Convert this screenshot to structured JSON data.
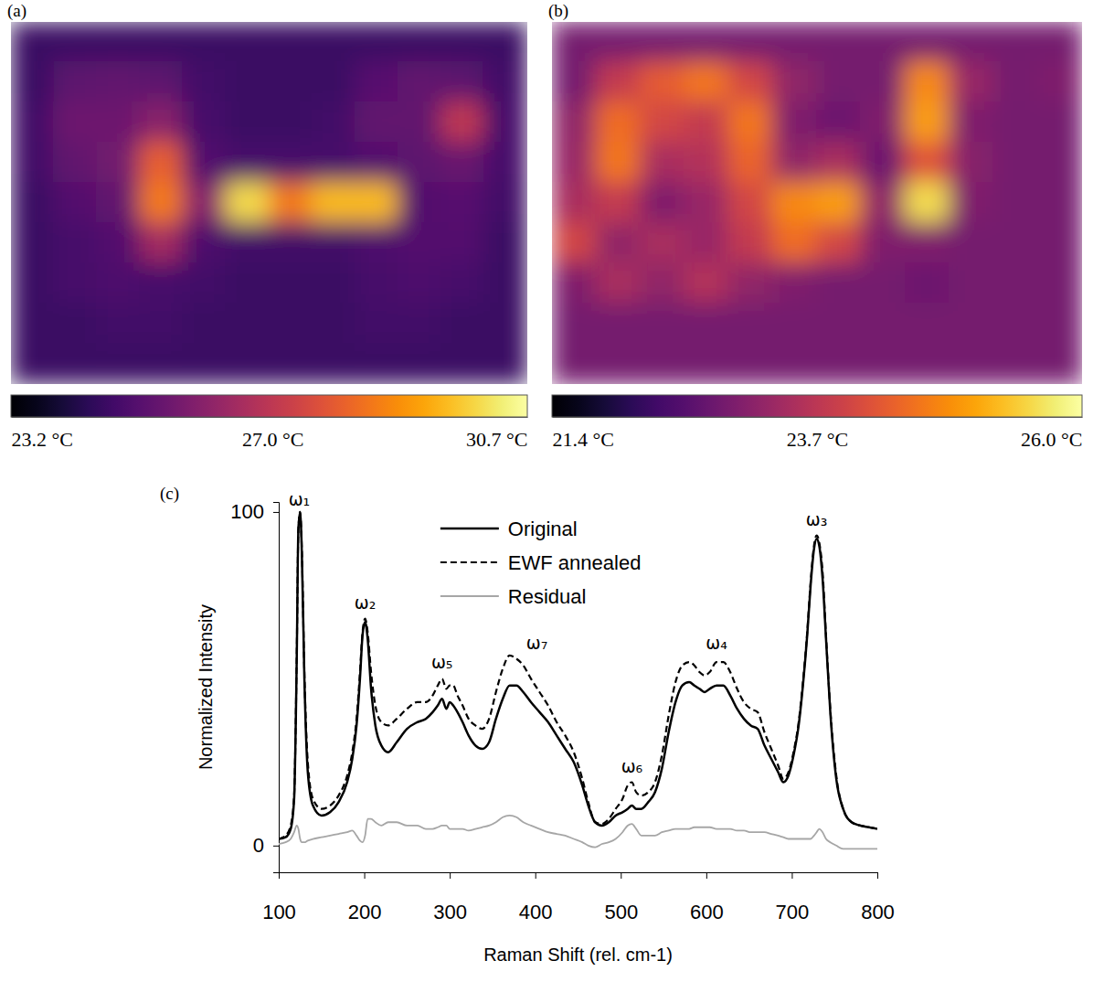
{
  "chart_data": [
    {
      "type": "heatmap",
      "title": "(a)",
      "color": "inferno",
      "tick_labels": false,
      "colorbar_range": [
        23.2,
        30.7
      ],
      "colorbar_ticks": [
        {
          "value": 23.2,
          "label": "23.2 °C"
        },
        {
          "value": 27.0,
          "label": "27.0 °C"
        },
        {
          "value": 30.7,
          "label": "30.7 °C"
        }
      ],
      "cells": [
        [
          24.6,
          24.6,
          24.6,
          24.6,
          24.6,
          24.6,
          24.6,
          24.6,
          24.6,
          24.6,
          24.6,
          24.6
        ],
        [
          24.6,
          25.2,
          25.3,
          25.2,
          24.7,
          24.6,
          24.6,
          24.6,
          25.1,
          25.3,
          25.2,
          24.7
        ],
        [
          24.7,
          25.5,
          25.5,
          26.0,
          24.8,
          24.6,
          24.6,
          24.7,
          25.3,
          25.3,
          27.0,
          24.8
        ],
        [
          24.7,
          25.3,
          25.6,
          28.0,
          25.0,
          24.8,
          24.8,
          24.8,
          25.0,
          25.2,
          25.4,
          24.8
        ],
        [
          24.6,
          25.0,
          25.3,
          28.5,
          26.0,
          30.0,
          28.5,
          29.5,
          29.5,
          25.0,
          25.1,
          24.7
        ],
        [
          24.6,
          24.8,
          25.0,
          26.5,
          24.9,
          24.7,
          24.7,
          24.7,
          24.9,
          25.0,
          25.0,
          24.6
        ],
        [
          24.6,
          24.8,
          24.9,
          24.8,
          24.7,
          24.6,
          24.6,
          24.6,
          24.8,
          24.9,
          24.8,
          24.6
        ],
        [
          24.6,
          24.6,
          24.7,
          24.7,
          24.6,
          24.6,
          24.6,
          24.6,
          24.7,
          24.7,
          24.6,
          24.6
        ],
        [
          24.6,
          24.6,
          24.6,
          24.6,
          24.6,
          24.6,
          24.6,
          24.6,
          24.6,
          24.6,
          24.6,
          24.6
        ]
      ]
    },
    {
      "type": "heatmap",
      "title": "(b)",
      "color": "inferno",
      "tick_labels": false,
      "colorbar_range": [
        21.4,
        26.0
      ],
      "colorbar_ticks": [
        {
          "value": 21.4,
          "label": "21.4 °C"
        },
        {
          "value": 23.7,
          "label": "23.7 °C"
        },
        {
          "value": 26.0,
          "label": "26.0 °C"
        }
      ],
      "cells": [
        [
          22.9,
          22.9,
          22.9,
          22.9,
          22.9,
          22.9,
          22.9,
          22.9,
          22.9,
          22.9,
          22.9,
          22.9
        ],
        [
          22.9,
          23.8,
          24.3,
          24.6,
          24.0,
          23.2,
          22.9,
          22.9,
          24.8,
          23.3,
          22.9,
          23.0
        ],
        [
          23.2,
          24.5,
          24.0,
          23.8,
          24.6,
          23.0,
          22.8,
          23.0,
          25.0,
          23.0,
          22.9,
          22.9
        ],
        [
          23.3,
          24.6,
          23.5,
          23.6,
          24.4,
          23.2,
          23.5,
          22.8,
          24.2,
          23.1,
          22.9,
          22.9
        ],
        [
          23.5,
          23.8,
          23.0,
          23.3,
          24.0,
          24.8,
          25.0,
          23.2,
          25.6,
          23.0,
          22.9,
          22.9
        ],
        [
          24.0,
          23.2,
          23.5,
          23.3,
          23.8,
          24.5,
          24.0,
          23.0,
          23.0,
          22.9,
          22.9,
          22.9
        ],
        [
          23.0,
          23.5,
          23.2,
          23.6,
          23.2,
          23.0,
          22.9,
          22.9,
          22.8,
          22.9,
          22.9,
          22.9
        ],
        [
          22.9,
          22.9,
          22.9,
          22.9,
          22.9,
          22.9,
          22.9,
          22.9,
          22.9,
          22.9,
          22.9,
          22.9
        ],
        [
          22.9,
          22.9,
          22.9,
          22.9,
          22.9,
          22.9,
          22.9,
          22.9,
          22.9,
          22.9,
          22.9,
          22.9
        ]
      ]
    },
    {
      "type": "line",
      "title": "(c)",
      "xlabel": "Raman Shift (rel. cm-1)",
      "ylabel": "Normalized Intensity",
      "xlim": [
        100,
        800
      ],
      "ylim": [
        -8,
        103
      ],
      "xticks": [
        100,
        200,
        300,
        400,
        500,
        600,
        700,
        800
      ],
      "yticks": [
        0,
        100
      ],
      "grid": false,
      "legend": "top",
      "x": [
        100,
        108,
        114,
        118,
        121,
        123,
        125,
        127,
        130,
        134,
        140,
        150,
        160,
        170,
        180,
        186,
        191,
        195,
        198,
        201,
        204,
        208,
        213,
        220,
        228,
        238,
        250,
        262,
        272,
        280,
        286,
        291,
        296,
        300,
        304,
        309,
        315,
        322,
        330,
        338,
        346,
        354,
        362,
        370,
        378,
        386,
        395,
        405,
        415,
        425,
        435,
        445,
        455,
        462,
        470,
        478,
        486,
        494,
        502,
        508,
        513,
        518,
        524,
        532,
        540,
        548,
        556,
        564,
        572,
        580,
        586,
        592,
        598,
        604,
        612,
        620,
        628,
        636,
        644,
        652,
        660,
        668,
        676,
        684,
        690,
        696,
        702,
        708,
        713,
        718,
        722,
        726,
        729,
        732,
        736,
        740,
        745,
        752,
        760,
        770,
        780,
        790,
        800
      ],
      "series": [
        {
          "name": "Original",
          "color": "#000000",
          "line_style": "solid",
          "values": [
            2,
            2.5,
            5,
            14,
            55,
            95,
            100,
            88,
            50,
            22,
            12,
            9,
            10,
            13,
            19,
            26,
            36,
            50,
            63,
            67,
            62,
            47,
            36,
            30,
            28,
            31,
            35,
            37,
            38,
            40,
            42,
            44,
            41,
            43,
            42,
            40,
            37,
            33,
            30,
            29,
            31,
            38,
            44,
            48,
            48,
            46,
            43,
            40,
            37,
            33,
            29,
            25,
            18,
            12,
            7,
            6,
            7,
            9,
            10,
            11,
            12,
            11,
            11,
            13,
            16,
            23,
            34,
            43,
            48,
            49,
            48,
            47,
            46,
            47,
            48,
            48,
            45,
            41,
            38,
            36,
            35,
            30,
            26,
            22,
            19,
            21,
            27,
            36,
            48,
            63,
            78,
            89,
            92,
            90,
            80,
            62,
            40,
            20,
            11,
            7,
            6,
            5.5,
            5
          ]
        },
        {
          "name": "EWF annealed",
          "color": "#000000",
          "line_style": "dashed",
          "values": [
            2,
            3,
            6,
            15,
            56,
            95,
            100,
            89,
            52,
            25,
            14,
            11,
            12,
            15,
            21,
            28,
            38,
            52,
            64,
            68,
            64,
            52,
            42,
            37,
            36,
            38,
            41,
            43,
            43,
            45,
            48,
            50,
            47,
            48,
            48,
            45,
            42,
            38,
            36,
            35,
            38,
            46,
            53,
            57,
            56,
            54,
            50,
            46,
            42,
            37,
            33,
            28,
            20,
            13,
            7,
            6.5,
            8,
            11,
            14,
            18,
            19,
            16,
            15,
            16,
            19,
            27,
            39,
            49,
            54,
            55,
            54,
            52,
            51,
            52,
            55,
            55,
            52,
            47,
            43,
            41,
            40,
            34,
            29,
            24,
            20,
            22,
            28,
            37,
            49,
            64,
            79,
            90,
            93,
            91,
            82,
            63,
            41,
            21,
            11,
            7,
            6,
            5.5,
            5
          ]
        },
        {
          "name": "Residual",
          "color": "#a6a6a6",
          "line_style": "solid",
          "values": [
            0.5,
            1,
            2,
            4,
            6,
            5,
            2,
            1,
            1,
            1.5,
            2,
            2.5,
            3,
            3.5,
            4,
            4.5,
            3,
            1.5,
            1,
            3,
            8,
            8,
            7,
            6,
            7,
            7,
            6,
            6,
            5,
            5,
            5.5,
            6,
            6,
            5,
            5,
            5,
            5,
            4.5,
            5,
            5.5,
            6,
            7,
            8.5,
            9,
            8.5,
            7,
            6,
            5,
            4,
            3.5,
            3,
            2,
            1,
            0,
            -0.5,
            0.5,
            1,
            2,
            4,
            6,
            6.5,
            5,
            3,
            3,
            3,
            4,
            4.5,
            5,
            5,
            5,
            5.5,
            5.5,
            5.5,
            5.5,
            5,
            5,
            5,
            4.5,
            4.5,
            4,
            4,
            4,
            3.5,
            3,
            2.5,
            2,
            2,
            2,
            2,
            2,
            2,
            3,
            4,
            5,
            4,
            2,
            1,
            0,
            -1,
            -1,
            -1,
            -1,
            -1
          ]
        }
      ],
      "annotations": [
        {
          "text": "ω₁",
          "x": 124,
          "y": 102
        },
        {
          "text": "ω₂",
          "x": 201,
          "y": 71
        },
        {
          "text": "ω₅",
          "x": 291,
          "y": 53
        },
        {
          "text": "ω₇",
          "x": 402,
          "y": 59
        },
        {
          "text": "ω₆",
          "x": 513,
          "y": 22
        },
        {
          "text": "ω₄",
          "x": 612,
          "y": 59
        },
        {
          "text": "ω₃",
          "x": 729,
          "y": 96
        }
      ]
    }
  ]
}
